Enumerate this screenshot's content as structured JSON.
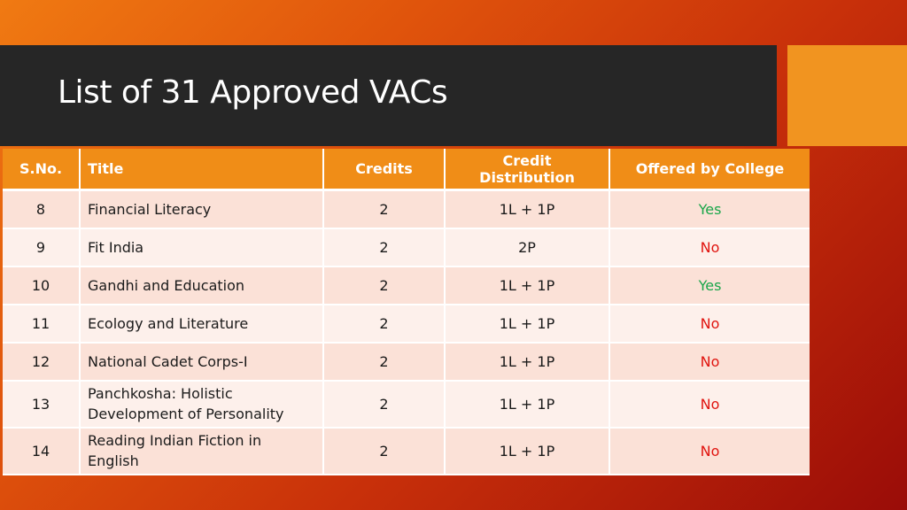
{
  "slide": {
    "title": "List of 31 Approved VACs"
  },
  "table": {
    "headers": [
      "S.No.",
      "Title",
      "Credits",
      "Credit Distribution",
      "Offered by College"
    ],
    "rows": [
      {
        "sno": "8",
        "title": "Financial Literacy",
        "credits": "2",
        "distribution": "1L + 1P",
        "offered": "Yes"
      },
      {
        "sno": "9",
        "title": "Fit India",
        "credits": "2",
        "distribution": "2P",
        "offered": "No"
      },
      {
        "sno": "10",
        "title": "Gandhi and Education",
        "credits": "2",
        "distribution": "1L + 1P",
        "offered": "Yes"
      },
      {
        "sno": "11",
        "title": "Ecology and Literature",
        "credits": "2",
        "distribution": "1L + 1P",
        "offered": "No"
      },
      {
        "sno": "12",
        "title": "National Cadet Corps-I",
        "credits": "2",
        "distribution": "1L + 1P",
        "offered": "No"
      },
      {
        "sno": "13",
        "title": "Panchkosha: Holistic Development of Personality",
        "credits": "2",
        "distribution": "1L + 1P",
        "offered": "No"
      },
      {
        "sno": "14",
        "title": "Reading Indian Fiction in English",
        "credits": "2",
        "distribution": "1L + 1P",
        "offered": "No"
      }
    ]
  },
  "colors": {
    "header_bg": "#f08d17",
    "yes": "#1aa64a",
    "no": "#e0140f"
  }
}
